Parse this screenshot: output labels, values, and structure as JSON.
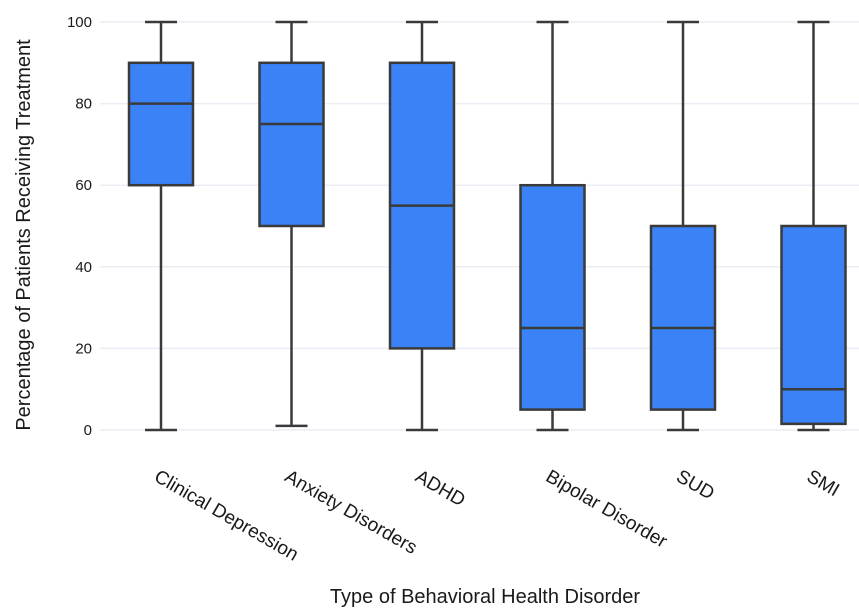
{
  "chart_data": {
    "type": "box",
    "title": "",
    "xlabel": "Type of Behavioral Health Disorder",
    "ylabel": "Percentage of Patients Receiving Treatment",
    "ylim": [
      0,
      100
    ],
    "yticks": [
      0,
      20,
      40,
      60,
      80,
      100
    ],
    "grid": true,
    "categories": [
      "Clinical Depression",
      "Anxiety Disorders",
      "ADHD",
      "Bipolar Disorder",
      "SUD",
      "SMI"
    ],
    "boxes": [
      {
        "category": "Clinical Depression",
        "min": 0,
        "q1": 60,
        "median": 80,
        "q3": 90,
        "max": 100
      },
      {
        "category": "Anxiety Disorders",
        "min": 1,
        "q1": 50,
        "median": 75,
        "q3": 90,
        "max": 100
      },
      {
        "category": "ADHD",
        "min": 0,
        "q1": 20,
        "median": 55,
        "q3": 90,
        "max": 100
      },
      {
        "category": "Bipolar Disorder",
        "min": 0,
        "q1": 5,
        "median": 25,
        "q3": 60,
        "max": 100
      },
      {
        "category": "SUD",
        "min": 0,
        "q1": 5,
        "median": 25,
        "q3": 50,
        "max": 100
      },
      {
        "category": "SMI",
        "min": 0,
        "q1": 1.5,
        "median": 10,
        "q3": 50,
        "max": 100
      }
    ],
    "colors": {
      "box_fill": "#3b82f6",
      "box_stroke": "#3a3a3a",
      "grid": "#e8eef4"
    }
  }
}
